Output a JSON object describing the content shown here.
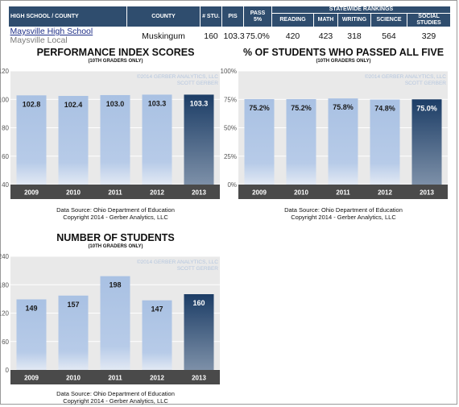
{
  "header": {
    "columns": {
      "school": "HIGH SCHOOL / COUNTY",
      "county": "COUNTY",
      "students": "# STU.",
      "pis": "PIS",
      "pass5": "PASS 5%",
      "rankings": "STATEWIDE RANKINGS",
      "reading": "READING",
      "math": "MATH",
      "writing": "WRITING",
      "science": "SCIENCE",
      "social": "SOCIAL STUDIES"
    },
    "row": {
      "school": "Maysville High School",
      "district": "Maysville Local",
      "county": "Muskingum",
      "students": "160",
      "pis": "103.3",
      "pass5": "75.0%",
      "reading": "420",
      "math": "423",
      "writing": "318",
      "science": "564",
      "social": "329"
    }
  },
  "watermark": [
    "©2014 GERBER ANALYTICS, LLC",
    "SCOTT GERBER"
  ],
  "source_lines": [
    "Data Source: Ohio Department of Education",
    "Copyright 2014 - Gerber Analytics, LLC"
  ],
  "colors": {
    "header_bg": "#2f4d6e",
    "bar_light": "#a9c1e3",
    "bar_dark": "#1c3d66",
    "axis_band": "#4a4a4a"
  },
  "chart_data": [
    {
      "id": "pi",
      "type": "bar",
      "title": "PERFORMANCE INDEX SCORES",
      "subtitle": "(10TH GRADERS ONLY)",
      "categories": [
        "2009",
        "2010",
        "2011",
        "2012",
        "2013"
      ],
      "values": [
        102.8,
        102.4,
        103.0,
        103.3,
        103.3
      ],
      "labels": [
        "102.8",
        "102.4",
        "103.0",
        "103.3",
        "103.3"
      ],
      "ylim": [
        40,
        120
      ],
      "yticks": [
        40,
        60,
        80,
        100,
        120
      ],
      "ytick_labels": [
        "40",
        "60",
        "80",
        "100",
        "120"
      ],
      "highlight_index": 4
    },
    {
      "id": "pass",
      "type": "bar",
      "title": "% OF STUDENTS WHO PASSED ALL FIVE",
      "subtitle": "(10TH GRADERS ONLY)",
      "categories": [
        "2009",
        "2010",
        "2011",
        "2012",
        "2013"
      ],
      "values": [
        75.2,
        75.2,
        75.8,
        74.8,
        75.0
      ],
      "labels": [
        "75.2%",
        "75.2%",
        "75.8%",
        "74.8%",
        "75.0%"
      ],
      "ylim": [
        0,
        100
      ],
      "yticks": [
        0,
        25,
        50,
        75,
        100
      ],
      "ytick_labels": [
        "0%",
        "25%",
        "50%",
        "75%",
        "100%"
      ],
      "highlight_index": 4
    },
    {
      "id": "stu",
      "type": "bar",
      "title": "NUMBER OF STUDENTS",
      "subtitle": "(10TH GRADERS ONLY)",
      "categories": [
        "2009",
        "2010",
        "2011",
        "2012",
        "2013"
      ],
      "values": [
        149,
        157,
        198,
        147,
        160
      ],
      "labels": [
        "149",
        "157",
        "198",
        "147",
        "160"
      ],
      "ylim": [
        0,
        240
      ],
      "yticks": [
        0,
        60,
        120,
        180,
        240
      ],
      "ytick_labels": [
        "0",
        "60",
        "120",
        "180",
        "240"
      ],
      "highlight_index": 4
    }
  ]
}
